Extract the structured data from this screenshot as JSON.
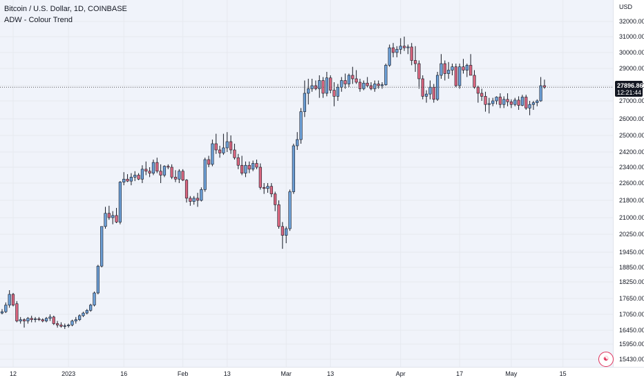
{
  "header": {
    "title": "Bitcoin / U.S. Dollar, 1D, COINBASE",
    "indicator": "ADW - Colour Trend"
  },
  "price_scale": {
    "currency": "USD",
    "current_price": "27896.86",
    "countdown": "12:21:44"
  },
  "colors": {
    "up": "#6c9fd6",
    "down": "#d9667f",
    "background": "#f0f3fa",
    "price_line": "#555555",
    "tag_bg": "#131722"
  },
  "chart_data": {
    "type": "candlestick",
    "title": "Bitcoin / U.S. Dollar, 1D, COINBASE",
    "y_ticks": [
      "15430.00",
      "15950.00",
      "16450.00",
      "17050.00",
      "17650.00",
      "18250.00",
      "18850.00",
      "19450.00",
      "20250.00",
      "21000.00",
      "21800.00",
      "22600.00",
      "23400.00",
      "24200.00",
      "25000.00",
      "26000.00",
      "27000.00",
      "28000.00",
      "29000.00",
      "30000.00",
      "31000.00",
      "32000.00"
    ],
    "x_ticks": [
      {
        "label": "12",
        "index": 3
      },
      {
        "label": "2023",
        "index": 18
      },
      {
        "label": "16",
        "index": 33
      },
      {
        "label": "Feb",
        "index": 49
      },
      {
        "label": "13",
        "index": 61
      },
      {
        "label": "Mar",
        "index": 77
      },
      {
        "label": "13",
        "index": 89
      },
      {
        "label": "Apr",
        "index": 108
      },
      {
        "label": "17",
        "index": 124
      },
      {
        "label": "May",
        "index": 138
      },
      {
        "label": "15",
        "index": 152
      }
    ],
    "current_price": 27896.86,
    "candles": [
      [
        17100,
        17250,
        17050,
        17150
      ],
      [
        17150,
        17500,
        17100,
        17400
      ],
      [
        17400,
        17950,
        17300,
        17800
      ],
      [
        17800,
        17850,
        17350,
        17400
      ],
      [
        17450,
        17550,
        16750,
        16800
      ],
      [
        16800,
        16950,
        16700,
        16850
      ],
      [
        16850,
        16900,
        16550,
        16800
      ],
      [
        16800,
        16950,
        16700,
        16900
      ],
      [
        16900,
        17000,
        16750,
        16850
      ],
      [
        16850,
        16950,
        16750,
        16880
      ],
      [
        16880,
        16950,
        16800,
        16850
      ],
      [
        16850,
        16900,
        16750,
        16800
      ],
      [
        16800,
        16950,
        16750,
        16900
      ],
      [
        16900,
        17050,
        16800,
        16950
      ],
      [
        16950,
        17000,
        16650,
        16700
      ],
      [
        16700,
        16800,
        16550,
        16650
      ],
      [
        16650,
        16750,
        16550,
        16600
      ],
      [
        16600,
        16700,
        16500,
        16620
      ],
      [
        16620,
        16700,
        16550,
        16650
      ],
      [
        16650,
        16850,
        16600,
        16800
      ],
      [
        16800,
        16950,
        16700,
        16850
      ],
      [
        16850,
        17050,
        16800,
        17000
      ],
      [
        17000,
        17150,
        16950,
        17100
      ],
      [
        17100,
        17250,
        17050,
        17200
      ],
      [
        17200,
        17450,
        17150,
        17400
      ],
      [
        17400,
        17900,
        17350,
        17850
      ],
      [
        17850,
        18950,
        17800,
        18900
      ],
      [
        18900,
        20600,
        18850,
        20600
      ],
      [
        20600,
        21500,
        20500,
        21200
      ],
      [
        21200,
        21550,
        20900,
        21000
      ],
      [
        21000,
        21300,
        20700,
        21100
      ],
      [
        21100,
        21450,
        20750,
        20800
      ],
      [
        20800,
        22700,
        20700,
        22650
      ],
      [
        22650,
        23150,
        22500,
        22800
      ],
      [
        22800,
        23050,
        22650,
        22700
      ],
      [
        22700,
        23100,
        22500,
        22900
      ],
      [
        22900,
        23200,
        22700,
        23000
      ],
      [
        23000,
        23100,
        22750,
        22800
      ],
      [
        22800,
        23500,
        22600,
        23300
      ],
      [
        23300,
        23700,
        23000,
        23200
      ],
      [
        23200,
        23400,
        22900,
        23100
      ],
      [
        23100,
        23800,
        23000,
        23650
      ],
      [
        23650,
        23900,
        23100,
        23200
      ],
      [
        23200,
        23550,
        22600,
        23000
      ],
      [
        23000,
        23500,
        22900,
        23450
      ],
      [
        23450,
        23550,
        23300,
        23400
      ],
      [
        23400,
        23550,
        22800,
        22900
      ],
      [
        22900,
        23250,
        22650,
        22800
      ],
      [
        22800,
        23300,
        22600,
        23200
      ],
      [
        23200,
        23300,
        22700,
        22750
      ],
      [
        22750,
        22800,
        21700,
        21900
      ],
      [
        21900,
        22000,
        21550,
        21750
      ],
      [
        21750,
        22000,
        21600,
        21900
      ],
      [
        21900,
        22150,
        21500,
        21800
      ],
      [
        21800,
        22400,
        21750,
        22300
      ],
      [
        22300,
        23900,
        22200,
        23800
      ],
      [
        23800,
        24000,
        23400,
        23550
      ],
      [
        23550,
        24800,
        23450,
        24600
      ],
      [
        24600,
        25100,
        24100,
        24300
      ],
      [
        24300,
        24500,
        23900,
        24150
      ],
      [
        24150,
        25100,
        24050,
        24400
      ],
      [
        24400,
        25200,
        24200,
        24700
      ],
      [
        24700,
        25000,
        24100,
        24300
      ],
      [
        24300,
        24600,
        23800,
        23900
      ],
      [
        23900,
        24100,
        23300,
        23500
      ],
      [
        23500,
        24000,
        23000,
        23100
      ],
      [
        23100,
        23700,
        22900,
        23500
      ],
      [
        23500,
        23700,
        23100,
        23300
      ],
      [
        23300,
        23750,
        23200,
        23600
      ],
      [
        23600,
        23800,
        23300,
        23400
      ],
      [
        23400,
        23600,
        22300,
        22400
      ],
      [
        22400,
        22600,
        22100,
        22350
      ],
      [
        22350,
        22600,
        22150,
        22450
      ],
      [
        22450,
        22600,
        21950,
        22100
      ],
      [
        22100,
        22200,
        21300,
        21600
      ],
      [
        21600,
        21800,
        20500,
        20600
      ],
      [
        20600,
        20800,
        19600,
        20200
      ],
      [
        20200,
        20600,
        19850,
        20500
      ],
      [
        20500,
        22300,
        20400,
        22200
      ],
      [
        22200,
        24600,
        22100,
        24500
      ],
      [
        24500,
        25200,
        24300,
        24800
      ],
      [
        24800,
        26600,
        24600,
        26400
      ],
      [
        26400,
        28300,
        26100,
        27500
      ],
      [
        27500,
        28400,
        26800,
        27800
      ],
      [
        27800,
        28400,
        27600,
        28000
      ],
      [
        28000,
        28300,
        27700,
        27800
      ],
      [
        27800,
        28600,
        27200,
        28300
      ],
      [
        28300,
        28500,
        27200,
        27500
      ],
      [
        27500,
        28800,
        27300,
        28450
      ],
      [
        28450,
        28600,
        27500,
        27700
      ],
      [
        27700,
        28200,
        26700,
        27300
      ],
      [
        27300,
        28100,
        27000,
        27900
      ],
      [
        27900,
        28500,
        27600,
        28300
      ],
      [
        28300,
        28700,
        27800,
        28100
      ],
      [
        28100,
        28700,
        27900,
        28600
      ],
      [
        28600,
        29100,
        28100,
        28400
      ],
      [
        28400,
        28900,
        28100,
        28200
      ],
      [
        28200,
        28400,
        27600,
        27800
      ],
      [
        27800,
        28300,
        27700,
        28150
      ],
      [
        28150,
        28500,
        27900,
        28000
      ],
      [
        28000,
        28200,
        27700,
        27800
      ],
      [
        27800,
        28300,
        27600,
        28100
      ],
      [
        28100,
        28300,
        27800,
        28000
      ],
      [
        28000,
        28200,
        27800,
        28050
      ],
      [
        28050,
        29300,
        28000,
        29200
      ],
      [
        29200,
        30500,
        29100,
        30300
      ],
      [
        30300,
        30600,
        29700,
        30000
      ],
      [
        30000,
        30400,
        29700,
        30200
      ],
      [
        30200,
        30900,
        29900,
        30400
      ],
      [
        30400,
        31000,
        30100,
        30300
      ],
      [
        30300,
        30500,
        29900,
        30350
      ],
      [
        30350,
        30600,
        29200,
        29500
      ],
      [
        29500,
        30400,
        28800,
        29300
      ],
      [
        29300,
        29500,
        27800,
        28400
      ],
      [
        28400,
        28600,
        27100,
        27300
      ],
      [
        27300,
        27700,
        26900,
        27450
      ],
      [
        27450,
        28300,
        27100,
        27900
      ],
      [
        27900,
        28100,
        26900,
        27100
      ],
      [
        27100,
        28800,
        27000,
        28600
      ],
      [
        28600,
        29900,
        28400,
        29300
      ],
      [
        29300,
        29500,
        28300,
        28700
      ],
      [
        28700,
        29400,
        28400,
        28900
      ],
      [
        28900,
        29300,
        28600,
        29100
      ],
      [
        29100,
        29300,
        27900,
        28000
      ],
      [
        28000,
        29300,
        27800,
        29100
      ],
      [
        29100,
        29600,
        28700,
        28900
      ],
      [
        28900,
        29300,
        28500,
        29200
      ],
      [
        29200,
        29900,
        28700,
        28600
      ],
      [
        28600,
        28900,
        27800,
        27900
      ],
      [
        27900,
        28000,
        26900,
        27500
      ],
      [
        27500,
        27800,
        27000,
        27300
      ],
      [
        27300,
        27600,
        26400,
        26800
      ],
      [
        26800,
        27200,
        26300,
        26850
      ],
      [
        26850,
        27200,
        26700,
        27000
      ],
      [
        27000,
        27300,
        26800,
        27250
      ],
      [
        27250,
        27500,
        26600,
        26800
      ],
      [
        26800,
        27300,
        26600,
        27100
      ],
      [
        27100,
        27500,
        26700,
        26950
      ],
      [
        26950,
        27100,
        26600,
        26800
      ],
      [
        26800,
        27200,
        26700,
        27050
      ],
      [
        27050,
        27300,
        26500,
        26750
      ],
      [
        26750,
        27400,
        26700,
        27250
      ],
      [
        27250,
        27400,
        26500,
        26600
      ],
      [
        26600,
        27000,
        26200,
        26800
      ],
      [
        26800,
        27000,
        26500,
        26900
      ],
      [
        26900,
        27100,
        26700,
        27000
      ],
      [
        27000,
        28500,
        26950,
        28000
      ],
      [
        28000,
        28350,
        27800,
        27897
      ]
    ]
  }
}
